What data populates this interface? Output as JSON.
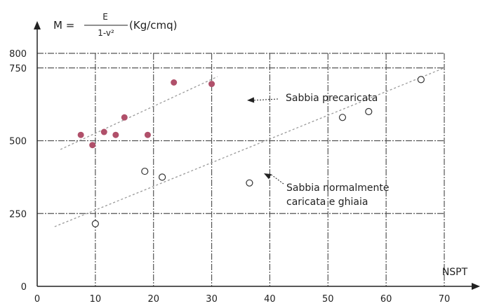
{
  "chart_data": {
    "type": "scatter",
    "title": "",
    "xlabel": "NSPT",
    "ylabel": {
      "symbol": "M =",
      "numerator": "E",
      "denominator": "1-v²",
      "unit": "(Kg/cmq)"
    },
    "xlim": [
      0,
      70
    ],
    "ylim": [
      0,
      800
    ],
    "x_ticks": [
      0,
      10,
      20,
      30,
      40,
      50,
      60,
      70
    ],
    "y_ticks": [
      0,
      250,
      500,
      750,
      800
    ],
    "grid": true,
    "series": [
      {
        "name": "Sabbia precaricata",
        "marker": "filled-circle",
        "color": "#b0506a",
        "points": [
          [
            7.5,
            520
          ],
          [
            9.5,
            485
          ],
          [
            11.5,
            530
          ],
          [
            13.5,
            520
          ],
          [
            15,
            580
          ],
          [
            19,
            520
          ],
          [
            23.5,
            700
          ],
          [
            30,
            695
          ]
        ],
        "trend": [
          [
            4,
            470
          ],
          [
            31,
            720
          ]
        ],
        "trend_color": "#9a9a9a"
      },
      {
        "name": "Sabbia normalmente caricata e ghiaia",
        "marker": "open-circle",
        "color": "#333333",
        "points": [
          [
            10,
            215
          ],
          [
            18.5,
            395
          ],
          [
            21.5,
            375
          ],
          [
            36.5,
            355
          ],
          [
            52.5,
            580
          ],
          [
            57,
            600
          ],
          [
            66,
            710
          ]
        ],
        "trend": [
          [
            3,
            205
          ],
          [
            70,
            750
          ]
        ],
        "trend_color": "#9a9a9a"
      }
    ],
    "annotations": [
      {
        "lines": [
          "Sabbia precaricata"
        ],
        "series": 0
      },
      {
        "lines": [
          "Sabbia normalmente",
          "caricata e ghiaia"
        ],
        "series": 1
      }
    ]
  }
}
